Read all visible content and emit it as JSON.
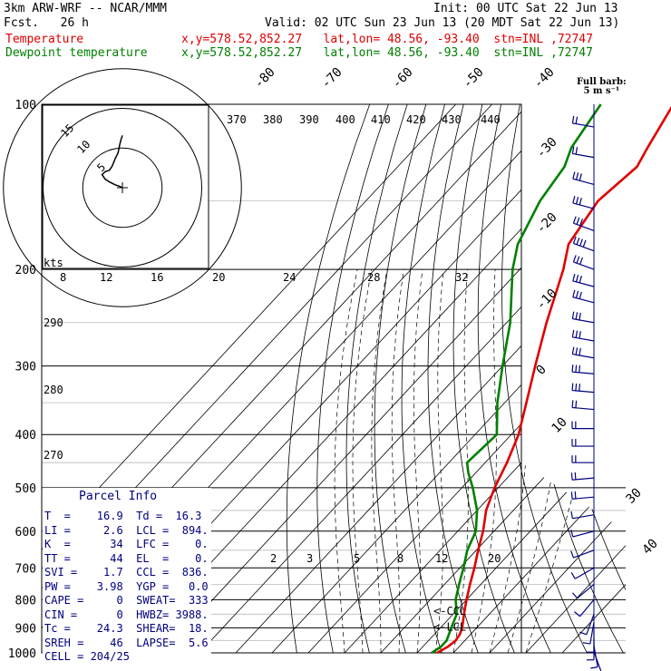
{
  "header": {
    "model": "3km ARW-WRF -- NCAR/MMM",
    "init": "Init: 00 UTC Sat 22 Jun 13",
    "fcst": "Fcst.   26 h",
    "valid": "Valid: 02 UTC Sun 23 Jun 13 (20 MDT Sat 22 Jun 13)",
    "temperature_label": "Temperature",
    "dewpoint_label": "Dewpoint temperature",
    "temperature_loc": "x,y=578.52,852.27   lat,lon= 48.56, -93.40  stn=INL ,72747",
    "dewpoint_loc": "x,y=578.52,852.27   lat,lon= 48.56, -93.40  stn=INL ,72747"
  },
  "colors": {
    "temperature": "#e00000",
    "dewpoint": "#008000",
    "barb": "#000080",
    "text_blue": "#000080"
  },
  "barb_legend": {
    "line1": "Full barb:",
    "line2": "5 m s⁻¹"
  },
  "hodograph": {
    "units": "kts",
    "ring_labels": [
      "5",
      "10",
      "15"
    ],
    "trace": [
      [
        0,
        0
      ],
      [
        -2,
        1
      ],
      [
        -5,
        2
      ],
      [
        -9,
        4
      ],
      [
        -12,
        6
      ],
      [
        -14,
        9
      ],
      [
        -12,
        11
      ],
      [
        -9,
        12
      ],
      [
        -7,
        15
      ],
      [
        -5,
        20
      ],
      [
        -3,
        24
      ],
      [
        -2,
        29
      ],
      [
        -1,
        33
      ],
      [
        0,
        36
      ]
    ]
  },
  "chart_data": {
    "type": "line",
    "title": "",
    "pressure_ticks": [
      100,
      200,
      300,
      400,
      500,
      600,
      700,
      800,
      900,
      1000
    ],
    "isotherm_labels": [
      "-80",
      "-70",
      "-60",
      "-50",
      "-40",
      "-30",
      "-20",
      "-10",
      "0",
      "10",
      "30",
      "40"
    ],
    "theta_labels": [
      "370",
      "380",
      "390",
      "400",
      "410",
      "420",
      "430",
      "440",
      "290",
      "280",
      "270"
    ],
    "mixing_ratio_labels_upper": [
      "8",
      "12",
      "16",
      "20",
      "24",
      "28",
      "32"
    ],
    "mixing_ratio_labels_lower": [
      "2",
      "3",
      "5",
      "8",
      "12",
      "20"
    ],
    "annotations": [
      "<-CCL",
      "<-LCL"
    ],
    "series": [
      {
        "name": "Temperature",
        "points": [
          [
            1000,
            15.5
          ],
          [
            975,
            16.9
          ],
          [
            950,
            17.5
          ],
          [
            925,
            17
          ],
          [
            900,
            16
          ],
          [
            850,
            13
          ],
          [
            800,
            10
          ],
          [
            750,
            7
          ],
          [
            700,
            4
          ],
          [
            650,
            0.5
          ],
          [
            600,
            -3
          ],
          [
            550,
            -7.5
          ],
          [
            500,
            -11
          ],
          [
            450,
            -14
          ],
          [
            400,
            -18
          ],
          [
            350,
            -24
          ],
          [
            300,
            -31
          ],
          [
            250,
            -39
          ],
          [
            200,
            -48
          ],
          [
            180,
            -53
          ],
          [
            150,
            -56
          ],
          [
            130,
            -54
          ],
          [
            120,
            -56
          ],
          [
            100,
            -60
          ]
        ]
      },
      {
        "name": "Dewpoint temperature",
        "points": [
          [
            1000,
            14
          ],
          [
            975,
            15
          ],
          [
            950,
            15
          ],
          [
            925,
            14
          ],
          [
            900,
            13
          ],
          [
            850,
            11
          ],
          [
            800,
            7
          ],
          [
            750,
            4
          ],
          [
            700,
            1
          ],
          [
            650,
            -2.5
          ],
          [
            600,
            -5
          ],
          [
            550,
            -10
          ],
          [
            500,
            -17
          ],
          [
            470,
            -22
          ],
          [
            450,
            -25
          ],
          [
            400,
            -24
          ],
          [
            350,
            -32
          ],
          [
            300,
            -40
          ],
          [
            250,
            -49
          ],
          [
            200,
            -62
          ],
          [
            180,
            -67
          ],
          [
            150,
            -72
          ],
          [
            130,
            -74
          ],
          [
            120,
            -77
          ],
          [
            100,
            -80
          ]
        ]
      }
    ],
    "wind_barbs": [
      {
        "p": 110,
        "dir": 280,
        "spd": 8
      },
      {
        "p": 125,
        "dir": 280,
        "spd": 12
      },
      {
        "p": 140,
        "dir": 285,
        "spd": 15
      },
      {
        "p": 155,
        "dir": 285,
        "spd": 17
      },
      {
        "p": 170,
        "dir": 290,
        "spd": 17
      },
      {
        "p": 185,
        "dir": 290,
        "spd": 18
      },
      {
        "p": 200,
        "dir": 290,
        "spd": 17
      },
      {
        "p": 215,
        "dir": 285,
        "spd": 16
      },
      {
        "p": 230,
        "dir": 285,
        "spd": 17
      },
      {
        "p": 250,
        "dir": 280,
        "spd": 16
      },
      {
        "p": 270,
        "dir": 280,
        "spd": 15
      },
      {
        "p": 290,
        "dir": 280,
        "spd": 15
      },
      {
        "p": 310,
        "dir": 275,
        "spd": 14
      },
      {
        "p": 335,
        "dir": 275,
        "spd": 13
      },
      {
        "p": 360,
        "dir": 275,
        "spd": 12
      },
      {
        "p": 390,
        "dir": 270,
        "spd": 11
      },
      {
        "p": 420,
        "dir": 270,
        "spd": 10
      },
      {
        "p": 450,
        "dir": 270,
        "spd": 10
      },
      {
        "p": 480,
        "dir": 265,
        "spd": 9
      },
      {
        "p": 520,
        "dir": 265,
        "spd": 8
      },
      {
        "p": 560,
        "dir": 260,
        "spd": 7
      },
      {
        "p": 600,
        "dir": 255,
        "spd": 6
      },
      {
        "p": 650,
        "dir": 250,
        "spd": 5
      },
      {
        "p": 700,
        "dir": 240,
        "spd": 4
      },
      {
        "p": 750,
        "dir": 230,
        "spd": 4
      },
      {
        "p": 800,
        "dir": 220,
        "spd": 3
      },
      {
        "p": 850,
        "dir": 200,
        "spd": 3
      },
      {
        "p": 880,
        "dir": 190,
        "spd": 4
      },
      {
        "p": 910,
        "dir": 180,
        "spd": 5
      },
      {
        "p": 940,
        "dir": 180,
        "spd": 5
      },
      {
        "p": 970,
        "dir": 170,
        "spd": 4
      },
      {
        "p": 995,
        "dir": 160,
        "spd": 3
      }
    ]
  },
  "parcel_info": {
    "title": "Parcel Info",
    "rows": [
      "T  =    16.9  Td =  16.3",
      "LI =     2.6  LCL =  894.",
      "K  =      34  LFC =    0.",
      "TT =      44  EL  =    0.",
      "SVI =    1.7  CCL =  836.",
      "PW =    3.98  YGP =   0.0",
      "CAPE =     0  SWEAT=  333",
      "CIN =      0  HWBZ= 3988.",
      "Tc =    24.3  SHEAR=  18.",
      "SREH =    46  LAPSE=  5.6",
      "CELL = 204/25"
    ]
  }
}
